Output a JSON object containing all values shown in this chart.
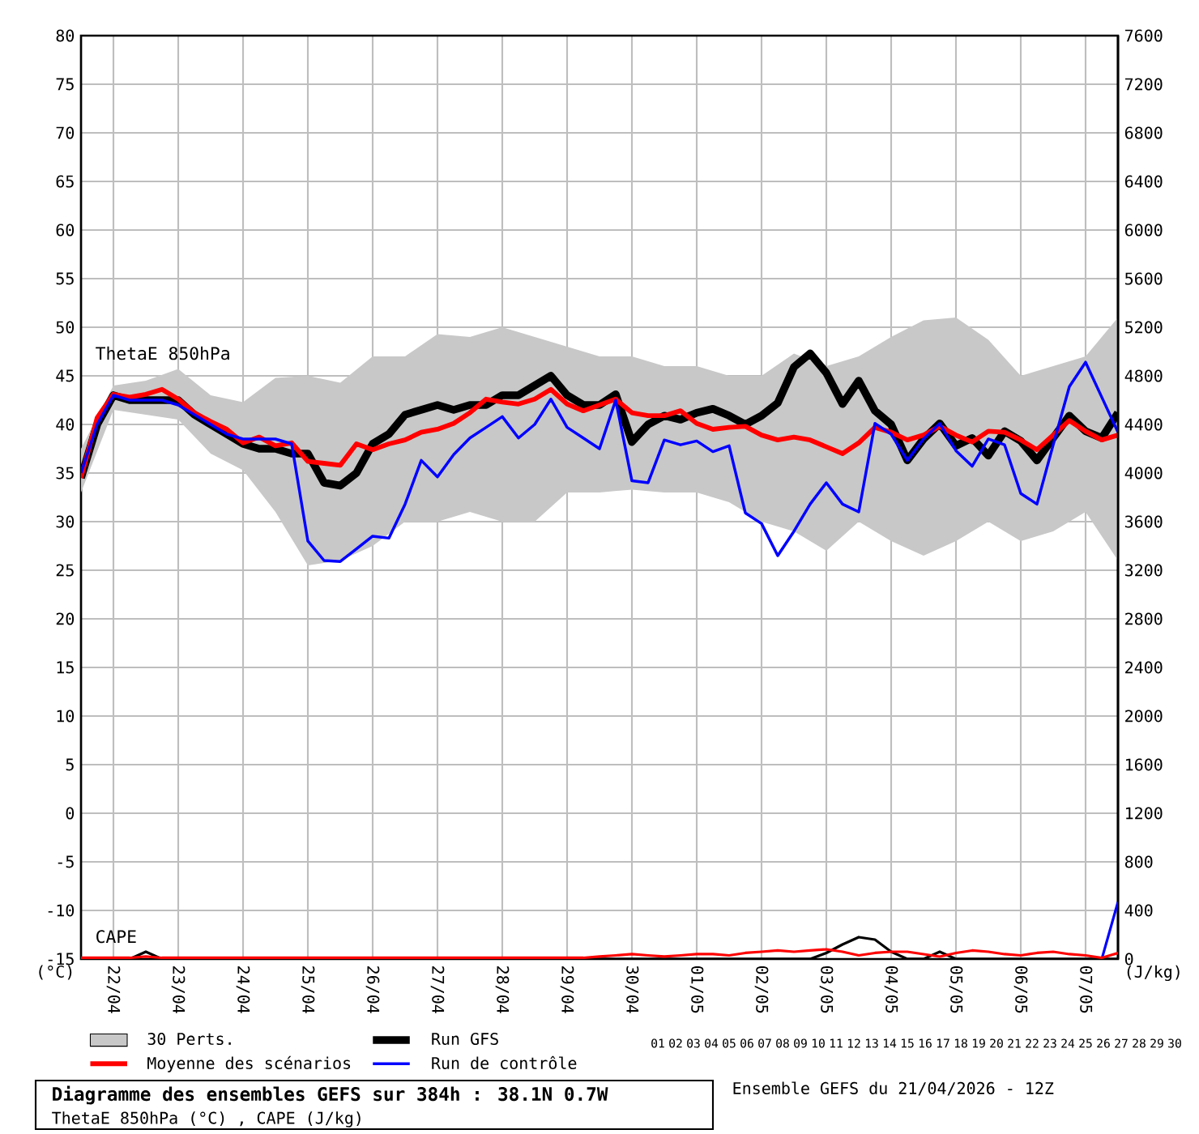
{
  "chart_data": {
    "type": "line",
    "title": "Diagramme des ensembles GEFS sur 384h : 38.1N 0.7W",
    "subtitle": "ThetaE 850hPa (°C) , CAPE (J/kg)",
    "ylabel": "(°C)",
    "y2label": "(J/kg)",
    "annotations": [
      "ThetaE 850hPa",
      "CAPE",
      "Ensemble GEFS du 21/04/2026 - 12Z",
      "01",
      "02",
      "03",
      "04",
      "05",
      "06",
      "07",
      "08",
      "09",
      "10",
      "11",
      "12",
      "13",
      "14",
      "15",
      "16",
      "17",
      "18",
      "19",
      "20",
      "21",
      "22",
      "23",
      "24",
      "25",
      "26",
      "27",
      "28",
      "29",
      "30"
    ],
    "x": [
      "2026-04-21T12:00",
      "2026-04-21T18:00",
      "2026-04-22T00:00",
      "2026-04-22T06:00",
      "2026-04-22T12:00",
      "2026-04-22T18:00",
      "2026-04-23T00:00",
      "2026-04-23T06:00",
      "2026-04-23T12:00",
      "2026-04-23T18:00",
      "2026-04-24T00:00",
      "2026-04-24T06:00",
      "2026-04-24T12:00",
      "2026-04-24T18:00",
      "2026-04-25T00:00",
      "2026-04-25T06:00",
      "2026-04-25T12:00",
      "2026-04-25T18:00",
      "2026-04-26T00:00",
      "2026-04-26T06:00",
      "2026-04-26T12:00",
      "2026-04-26T18:00",
      "2026-04-27T00:00",
      "2026-04-27T06:00",
      "2026-04-27T12:00",
      "2026-04-27T18:00",
      "2026-04-28T00:00",
      "2026-04-28T06:00",
      "2026-04-28T12:00",
      "2026-04-28T18:00",
      "2026-04-29T00:00",
      "2026-04-29T06:00",
      "2026-04-29T12:00",
      "2026-04-29T18:00",
      "2026-04-30T00:00",
      "2026-04-30T06:00",
      "2026-04-30T12:00",
      "2026-04-30T18:00",
      "2026-05-01T00:00",
      "2026-05-01T06:00",
      "2026-05-01T12:00",
      "2026-05-01T18:00",
      "2026-05-02T00:00",
      "2026-05-02T06:00",
      "2026-05-02T12:00",
      "2026-05-02T18:00",
      "2026-05-03T00:00",
      "2026-05-03T06:00",
      "2026-05-03T12:00",
      "2026-05-03T18:00",
      "2026-05-04T00:00",
      "2026-05-04T06:00",
      "2026-05-04T12:00",
      "2026-05-04T18:00",
      "2026-05-05T00:00",
      "2026-05-05T06:00",
      "2026-05-05T12:00",
      "2026-05-05T18:00",
      "2026-05-06T00:00",
      "2026-05-06T06:00",
      "2026-05-06T12:00",
      "2026-05-06T18:00",
      "2026-05-07T00:00",
      "2026-05-07T06:00",
      "2026-05-07T12:00"
    ],
    "xlim": [
      "2026-04-21T12:00",
      "2026-05-07T12:00"
    ],
    "xticks": [
      {
        "value": "2026-04-22",
        "label": "22/04"
      },
      {
        "value": "2026-04-23",
        "label": "23/04"
      },
      {
        "value": "2026-04-24",
        "label": "24/04"
      },
      {
        "value": "2026-04-25",
        "label": "25/04"
      },
      {
        "value": "2026-04-26",
        "label": "26/04"
      },
      {
        "value": "2026-04-27",
        "label": "27/04"
      },
      {
        "value": "2026-04-28",
        "label": "28/04"
      },
      {
        "value": "2026-04-29",
        "label": "29/04"
      },
      {
        "value": "2026-04-30",
        "label": "30/04"
      },
      {
        "value": "2026-05-01",
        "label": "01/05"
      },
      {
        "value": "2026-05-02",
        "label": "02/05"
      },
      {
        "value": "2026-05-03",
        "label": "03/05"
      },
      {
        "value": "2026-05-04",
        "label": "04/05"
      },
      {
        "value": "2026-05-05",
        "label": "05/05"
      },
      {
        "value": "2026-05-06",
        "label": "06/05"
      },
      {
        "value": "2026-05-07",
        "label": "07/05"
      }
    ],
    "ylim": [
      -15,
      80
    ],
    "yticks": [
      -15,
      -10,
      -5,
      0,
      5,
      10,
      15,
      20,
      25,
      30,
      35,
      40,
      45,
      50,
      55,
      60,
      65,
      70,
      75,
      80
    ],
    "y2lim": [
      0,
      7600
    ],
    "y2ticks": [
      0,
      400,
      800,
      1200,
      1600,
      2000,
      2400,
      2800,
      3200,
      3600,
      4000,
      4400,
      4800,
      5200,
      5600,
      6000,
      6400,
      6800,
      7200,
      7600
    ],
    "grid": true,
    "legend": "bottom",
    "series": [
      {
        "name": "30 Perts.",
        "color": "#c8c8c8",
        "x": [
          "2026-04-21T12:00",
          "2026-04-22T00:00",
          "2026-04-22T12:00",
          "2026-04-23T00:00",
          "2026-04-23T12:00",
          "2026-04-24T00:00",
          "2026-04-24T12:00",
          "2026-04-25T00:00",
          "2026-04-25T12:00",
          "2026-04-26T00:00",
          "2026-04-26T12:00",
          "2026-04-27T00:00",
          "2026-04-27T12:00",
          "2026-04-28T00:00",
          "2026-04-28T12:00",
          "2026-04-29T00:00",
          "2026-04-29T12:00",
          "2026-04-30T00:00",
          "2026-04-30T12:00",
          "2026-05-01T00:00",
          "2026-05-01T12:00",
          "2026-05-02T00:00",
          "2026-05-02T12:00",
          "2026-05-03T00:00",
          "2026-05-03T12:00",
          "2026-05-04T00:00",
          "2026-05-04T12:00",
          "2026-05-05T00:00",
          "2026-05-05T12:00",
          "2026-05-06T00:00",
          "2026-05-06T12:00",
          "2026-05-07T00:00",
          "2026-05-07T12:00"
        ],
        "values": [
          null,
          null,
          null,
          null,
          null,
          null,
          null,
          null,
          null,
          null,
          null,
          null,
          null,
          null,
          null,
          null,
          null,
          null,
          null,
          null,
          null,
          null,
          null,
          null,
          null,
          null,
          null,
          null,
          null,
          null,
          null,
          null,
          null
        ],
        "lower": [
          33,
          41.5,
          41,
          40.5,
          37,
          35.3,
          31,
          25.5,
          26,
          27.5,
          30,
          30,
          31,
          30,
          30,
          33,
          33,
          33.3,
          33,
          33,
          32,
          30,
          29,
          27,
          30,
          28,
          26.5,
          28,
          30,
          28,
          29,
          31,
          26
        ],
        "upper": [
          37.5,
          44,
          44.5,
          45.7,
          43,
          42.3,
          44.8,
          45,
          44.3,
          47,
          47,
          49.3,
          49,
          50,
          49,
          48,
          47,
          47,
          46,
          46,
          45,
          45,
          47.3,
          46,
          47,
          49,
          50.7,
          51,
          48.7,
          45,
          46,
          47,
          51
        ]
      },
      {
        "name": "Run GFS",
        "color": "#000000",
        "values": [
          34.5,
          40,
          43,
          42.5,
          42.5,
          42.5,
          42.5,
          41,
          40,
          39,
          38,
          37.5,
          37.5,
          37,
          37,
          34,
          33.7,
          35,
          38,
          39,
          41,
          41.5,
          42,
          41.5,
          42,
          42,
          43,
          43,
          44,
          45,
          43,
          42,
          42,
          43.1,
          38.2,
          40,
          40.9,
          40.5,
          41.2,
          41.6,
          40.9,
          40,
          40.9,
          42.2,
          45.9,
          47.3,
          45.3,
          42.1,
          44.5,
          41.4,
          40,
          36.3,
          38.5,
          40.1,
          37.8,
          38.6,
          36.8,
          39.3,
          38.3,
          36.3,
          38.6,
          40.9,
          39.3,
          38.6,
          41.2
        ]
      },
      {
        "name": "Moyenne des scénarios",
        "color": "#ff0000",
        "values": [
          34.5,
          40.7,
          43.1,
          42.8,
          43.1,
          43.6,
          42.6,
          41.2,
          40.3,
          39.5,
          38.1,
          38.7,
          37.8,
          38.1,
          36.2,
          36.0,
          35.8,
          38.0,
          37.4,
          38.0,
          38.4,
          39.2,
          39.5,
          40.1,
          41.2,
          42.6,
          42.3,
          42.1,
          42.6,
          43.6,
          42.1,
          41.4,
          42.0,
          42.6,
          41.2,
          40.9,
          40.9,
          41.4,
          40.1,
          39.5,
          39.7,
          39.8,
          38.9,
          38.4,
          38.7,
          38.4,
          37.7,
          37.0,
          38.1,
          39.7,
          39.2,
          38.4,
          38.9,
          39.8,
          38.9,
          38.2,
          39.3,
          39.2,
          38.4,
          37.4,
          38.9,
          40.4,
          39.3,
          38.4,
          38.9
        ]
      },
      {
        "name": "Run de contrôle",
        "color": "#0000ff",
        "values": [
          35,
          40,
          43,
          42.5,
          42.5,
          42.5,
          42,
          41,
          40,
          39,
          38.5,
          38.5,
          38.5,
          38,
          28,
          26,
          25.9,
          27.2,
          28.5,
          28.3,
          31.8,
          36.3,
          34.6,
          36.9,
          38.6,
          39.7,
          40.8,
          38.6,
          40,
          42.6,
          39.7,
          38.6,
          37.5,
          42.5,
          34.2,
          34.0,
          38.4,
          37.9,
          38.3,
          37.2,
          37.8,
          30.9,
          29.8,
          26.5,
          29.0,
          31.8,
          34.0,
          31.8,
          31.0,
          40.1,
          39.0,
          36.3,
          38.5,
          40.1,
          37.3,
          35.7,
          38.5,
          37.9,
          32.9,
          31.8,
          37.9,
          43.9,
          46.4,
          42.8,
          39.2
        ]
      },
      {
        "axis": "y2",
        "color": "#0000ff",
        "values": [
          null,
          null,
          null,
          null,
          null,
          null,
          null,
          null,
          null,
          null,
          null,
          null,
          null,
          null,
          null,
          null,
          null,
          null,
          null,
          null,
          null,
          null,
          null,
          null,
          null,
          null,
          null,
          null,
          null,
          null,
          null,
          null,
          null,
          null,
          null,
          null,
          null,
          null,
          null,
          null,
          null,
          null,
          null,
          null,
          null,
          null,
          null,
          null,
          null,
          null,
          null,
          null,
          null,
          null,
          null,
          null,
          null,
          null,
          null,
          null,
          null,
          null,
          null,
          0,
          470
        ]
      },
      {
        "axis": "y2",
        "color": "#000000",
        "values": [
          0,
          0,
          0,
          0,
          60,
          0,
          0,
          0,
          0,
          0,
          0,
          0,
          0,
          0,
          0,
          0,
          0,
          0,
          0,
          0,
          0,
          0,
          0,
          0,
          0,
          0,
          0,
          0,
          0,
          0,
          0,
          0,
          0,
          0,
          0,
          0,
          0,
          0,
          0,
          0,
          0,
          0,
          0,
          0,
          0,
          0,
          50,
          120,
          180,
          160,
          60,
          0,
          0,
          60,
          0,
          0,
          0,
          0,
          0,
          0,
          0,
          0,
          0,
          0,
          0
        ]
      },
      {
        "axis": "y2",
        "color": "#ff0000",
        "values": [
          10,
          10,
          10,
          10,
          20,
          10,
          10,
          10,
          10,
          10,
          10,
          10,
          10,
          10,
          10,
          10,
          10,
          10,
          10,
          10,
          10,
          10,
          10,
          10,
          10,
          10,
          10,
          10,
          10,
          10,
          10,
          10,
          20,
          30,
          40,
          30,
          20,
          30,
          40,
          40,
          30,
          50,
          60,
          70,
          60,
          70,
          80,
          60,
          30,
          50,
          60,
          60,
          40,
          20,
          50,
          70,
          60,
          40,
          30,
          50,
          60,
          40,
          30,
          10,
          50
        ]
      }
    ]
  }
}
